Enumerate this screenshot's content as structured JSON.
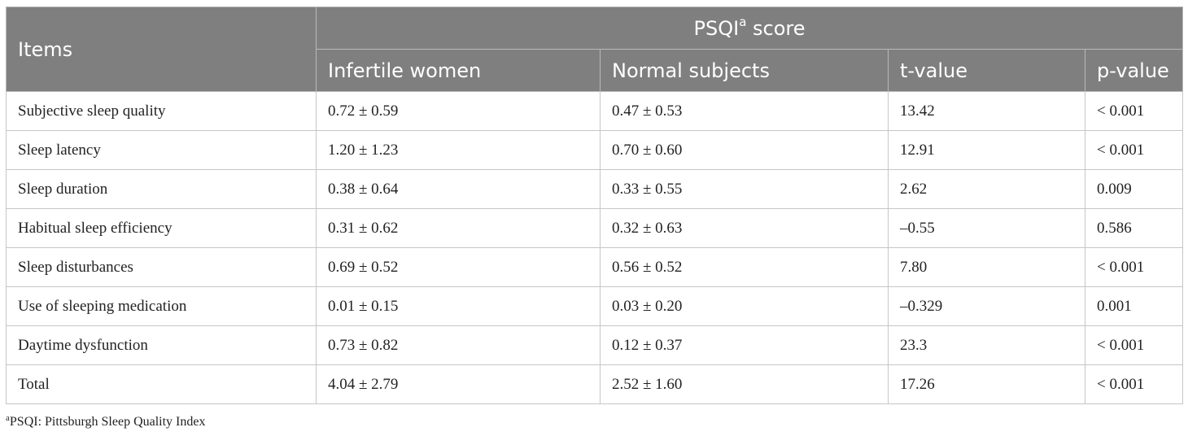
{
  "header": {
    "items": "Items",
    "group_label": "PSQI",
    "group_sup": "a",
    "group_suffix": " score",
    "columns": [
      "Infertile women",
      "Normal subjects",
      "t-value",
      "p-value"
    ]
  },
  "rows": [
    {
      "item": "Subjective sleep quality",
      "infertile": "0.72 ± 0.59",
      "normal": "0.47 ± 0.53",
      "t": "13.42",
      "p": "< 0.001"
    },
    {
      "item": "Sleep latency",
      "infertile": "1.20 ± 1.23",
      "normal": "0.70 ± 0.60",
      "t": "12.91",
      "p": "< 0.001"
    },
    {
      "item": "Sleep duration",
      "infertile": "0.38 ± 0.64",
      "normal": "0.33 ± 0.55",
      "t": "2.62",
      "p": "0.009"
    },
    {
      "item": "Habitual sleep efficiency",
      "infertile": "0.31 ± 0.62",
      "normal": "0.32 ± 0.63",
      "t": "–0.55",
      "p": "0.586"
    },
    {
      "item": "Sleep disturbances",
      "infertile": "0.69 ± 0.52",
      "normal": "0.56 ± 0.52",
      "t": "7.80",
      "p": "< 0.001"
    },
    {
      "item": "Use of sleeping medication",
      "infertile": "0.01 ± 0.15",
      "normal": "0.03 ± 0.20",
      "t": "–0.329",
      "p": "0.001"
    },
    {
      "item": "Daytime dysfunction",
      "infertile": "0.73 ± 0.82",
      "normal": "0.12 ± 0.37",
      "t": "23.3",
      "p": "< 0.001"
    },
    {
      "item": "Total",
      "infertile": "4.04 ± 2.79",
      "normal": "2.52 ± 1.60",
      "t": "17.26",
      "p": "< 0.001"
    }
  ],
  "footnote": {
    "sup": "a",
    "text": "PSQI: Pittsburgh Sleep Quality Index"
  }
}
